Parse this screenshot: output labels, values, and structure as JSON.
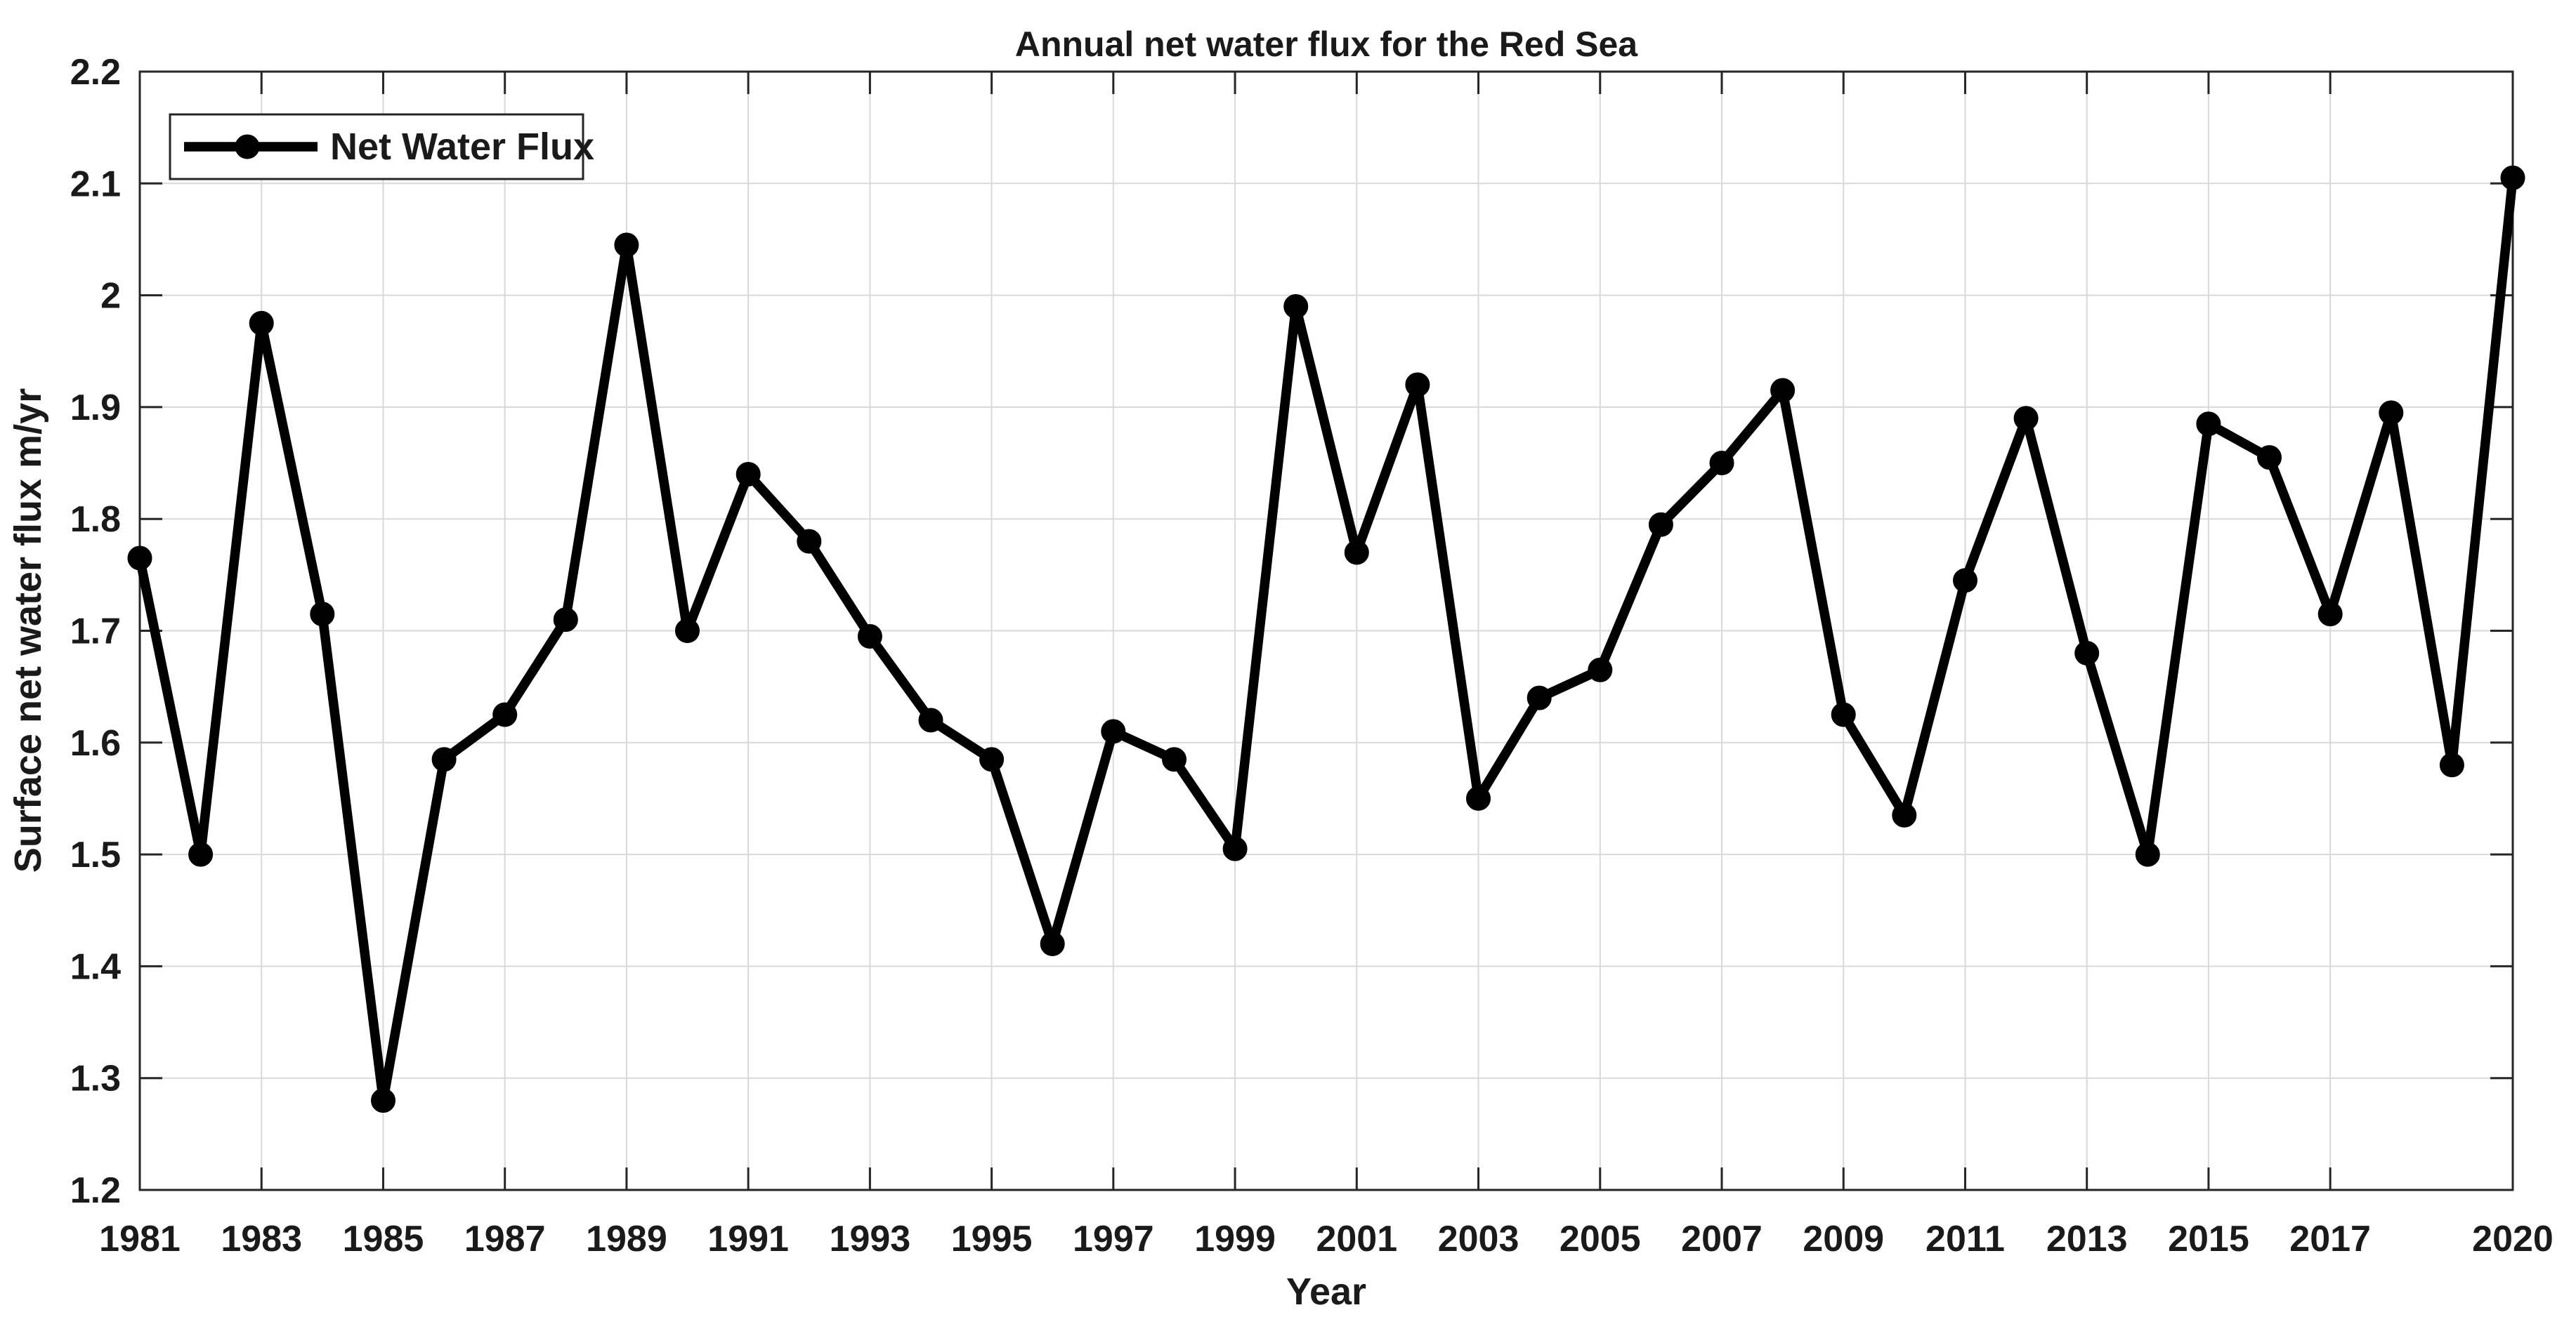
{
  "chart_data": {
    "type": "line",
    "title": "Annual net water flux for the Red Sea",
    "xlabel": "Year",
    "ylabel": "Surface net water flux m/yr",
    "legend": {
      "label": "Net Water Flux",
      "position": "top-left"
    },
    "x": [
      1981,
      1982,
      1983,
      1984,
      1985,
      1986,
      1987,
      1988,
      1989,
      1990,
      1991,
      1992,
      1993,
      1994,
      1995,
      1996,
      1997,
      1998,
      1999,
      2000,
      2001,
      2002,
      2003,
      2004,
      2005,
      2006,
      2007,
      2008,
      2009,
      2010,
      2011,
      2012,
      2013,
      2014,
      2015,
      2016,
      2017,
      2018,
      2019,
      2020
    ],
    "series": [
      {
        "name": "Net Water Flux",
        "values": [
          1.765,
          1.5,
          1.975,
          1.715,
          1.28,
          1.585,
          1.625,
          1.71,
          2.045,
          1.7,
          1.84,
          1.78,
          1.695,
          1.62,
          1.585,
          1.42,
          1.61,
          1.585,
          1.505,
          1.99,
          1.77,
          1.92,
          1.55,
          1.64,
          1.665,
          1.795,
          1.85,
          1.915,
          1.625,
          1.535,
          1.745,
          1.89,
          1.68,
          1.5,
          1.885,
          1.855,
          1.715,
          1.895,
          1.58,
          2.105
        ]
      }
    ],
    "xlim": [
      1981,
      2020
    ],
    "ylim": [
      1.2,
      2.2
    ],
    "xticks": [
      1981,
      1983,
      1985,
      1987,
      1989,
      1991,
      1993,
      1995,
      1997,
      1999,
      2001,
      2003,
      2005,
      2007,
      2009,
      2011,
      2013,
      2015,
      2017,
      2020
    ],
    "yticks": [
      1.2,
      1.3,
      1.4,
      1.5,
      1.6,
      1.7,
      1.8,
      1.9,
      2.0,
      2.1,
      2.2
    ],
    "ytick_labels": [
      "1.2",
      "1.3",
      "1.4",
      "1.5",
      "1.6",
      "1.7",
      "1.8",
      "1.9",
      "2",
      "2.1",
      "2.2"
    ],
    "grid": true,
    "legend_marker": "filled-circle-on-line",
    "colors": {
      "line": "#000000",
      "marker": "#000000",
      "grid": "#d9d9d9",
      "axes": "#262626",
      "text": "#1a1a1a",
      "background": "#ffffff"
    }
  }
}
